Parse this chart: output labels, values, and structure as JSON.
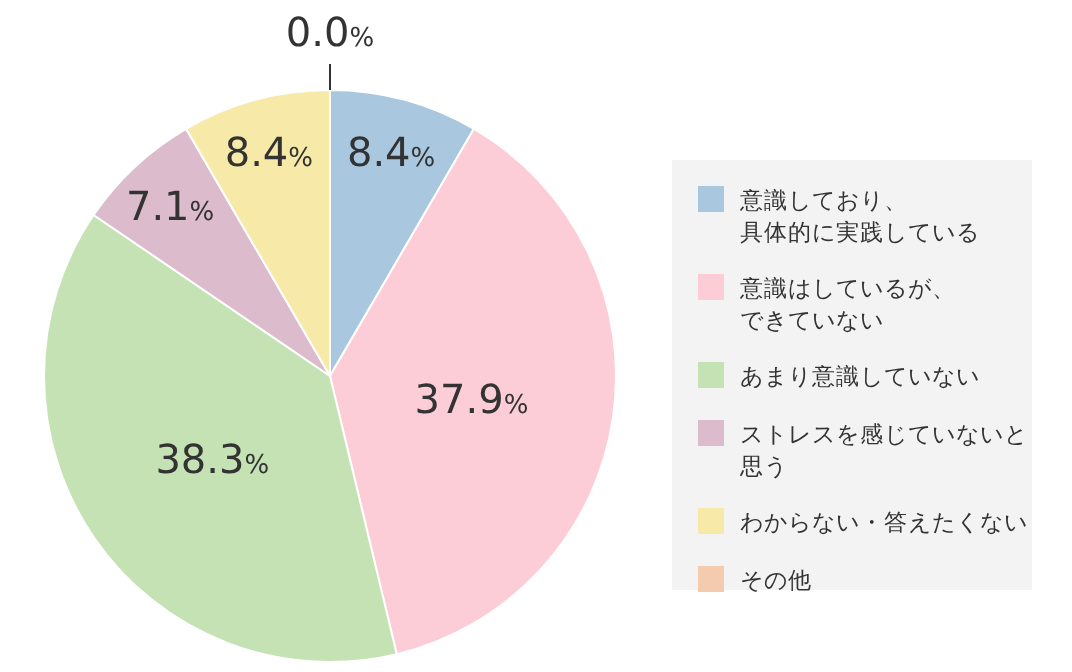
{
  "chart_data": {
    "type": "pie",
    "categories": [
      "意識しており、具体的に実践している",
      "意識はしているが、できていない",
      "あまり意識していない",
      "ストレスを感じていないと思う",
      "わからない・答えたくない",
      "その他"
    ],
    "values": [
      8.4,
      37.9,
      38.3,
      7.1,
      8.4,
      0.0
    ],
    "value_labels": [
      "8.4%",
      "37.9%",
      "38.3%",
      "7.1%",
      "8.4%",
      "0.0%"
    ],
    "colors": [
      "#a9c8e0",
      "#fccdd6",
      "#c5e2b5",
      "#dcbccc",
      "#f7e9a8",
      "#f5cbb0"
    ],
    "legend": "right"
  }
}
